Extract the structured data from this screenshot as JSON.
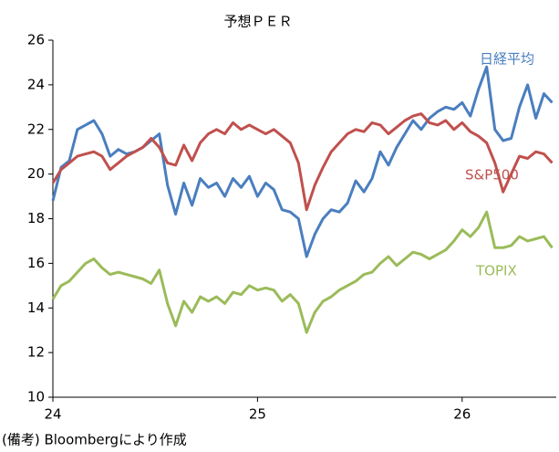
{
  "chart_data": {
    "type": "line",
    "title": "予想ＰＥＲ",
    "note": "(備考) Bloombergにより作成",
    "x": [
      24,
      24.04,
      24.08,
      24.12,
      24.16,
      24.2,
      24.24,
      24.28,
      24.32,
      24.36,
      24.4,
      24.44,
      24.48,
      24.52,
      24.56,
      24.6,
      24.64,
      24.68,
      24.72,
      24.76,
      24.8,
      24.84,
      24.88,
      24.92,
      24.96,
      25,
      25.04,
      25.08,
      25.12,
      25.16,
      25.2,
      25.24,
      25.28,
      25.32,
      25.36,
      25.4,
      25.44,
      25.48,
      25.52,
      25.56,
      25.6,
      25.64,
      25.68,
      25.72,
      25.76,
      25.8,
      25.84,
      25.88,
      25.92,
      25.96,
      26,
      26.04,
      26.08,
      26.12,
      26.16,
      26.2,
      26.24,
      26.28,
      26.32,
      26.36,
      26.4,
      26.44
    ],
    "series": [
      {
        "name": "日経平均",
        "color": "#4a7ebf",
        "values": [
          18.8,
          20.3,
          20.6,
          22.0,
          22.2,
          22.4,
          21.8,
          20.8,
          21.1,
          20.9,
          21.0,
          21.2,
          21.5,
          21.8,
          19.5,
          18.2,
          19.6,
          18.6,
          19.8,
          19.4,
          19.6,
          19.0,
          19.8,
          19.4,
          19.9,
          19.0,
          19.6,
          19.3,
          18.4,
          18.3,
          18.0,
          16.3,
          17.3,
          18.0,
          18.4,
          18.3,
          18.7,
          19.7,
          19.2,
          19.8,
          21.0,
          20.4,
          21.2,
          21.8,
          22.4,
          22.0,
          22.5,
          22.8,
          23.0,
          22.9,
          23.2,
          22.6,
          23.8,
          24.8,
          22.0,
          21.5,
          21.6,
          23.0,
          24.0,
          22.5,
          23.6,
          23.2
        ]
      },
      {
        "name": "S&P500",
        "color": "#c0504d",
        "values": [
          19.6,
          20.2,
          20.5,
          20.8,
          20.9,
          21.0,
          20.8,
          20.2,
          20.5,
          20.8,
          21.0,
          21.2,
          21.6,
          21.2,
          20.5,
          20.4,
          21.3,
          20.6,
          21.4,
          21.8,
          22.0,
          21.8,
          22.3,
          22.0,
          22.2,
          22.0,
          21.8,
          22.0,
          21.7,
          21.4,
          20.5,
          18.4,
          19.5,
          20.3,
          21.0,
          21.4,
          21.8,
          22.0,
          21.9,
          22.3,
          22.2,
          21.8,
          22.1,
          22.4,
          22.6,
          22.7,
          22.3,
          22.2,
          22.4,
          22.0,
          22.3,
          21.9,
          21.7,
          21.4,
          20.5,
          19.2,
          20.0,
          20.8,
          20.7,
          21.0,
          20.9,
          20.5
        ]
      },
      {
        "name": "TOPIX",
        "color": "#9bbb59",
        "values": [
          14.4,
          15.0,
          15.2,
          15.6,
          16.0,
          16.2,
          15.8,
          15.5,
          15.6,
          15.5,
          15.4,
          15.3,
          15.1,
          15.7,
          14.2,
          13.2,
          14.3,
          13.8,
          14.5,
          14.3,
          14.5,
          14.2,
          14.7,
          14.6,
          15.0,
          14.8,
          14.9,
          14.8,
          14.3,
          14.6,
          14.2,
          12.9,
          13.8,
          14.3,
          14.5,
          14.8,
          15.0,
          15.2,
          15.5,
          15.6,
          16.0,
          16.3,
          15.9,
          16.2,
          16.5,
          16.4,
          16.2,
          16.4,
          16.6,
          17.0,
          17.5,
          17.2,
          17.6,
          18.3,
          16.7,
          16.7,
          16.8,
          17.2,
          17.0,
          17.1,
          17.2,
          16.7
        ]
      }
    ],
    "xlim": [
      24,
      26.46
    ],
    "xticks": [
      24,
      25,
      26
    ],
    "ylim": [
      10,
      26
    ],
    "yticks": [
      10,
      12,
      14,
      16,
      18,
      20,
      22,
      24,
      26
    ]
  }
}
